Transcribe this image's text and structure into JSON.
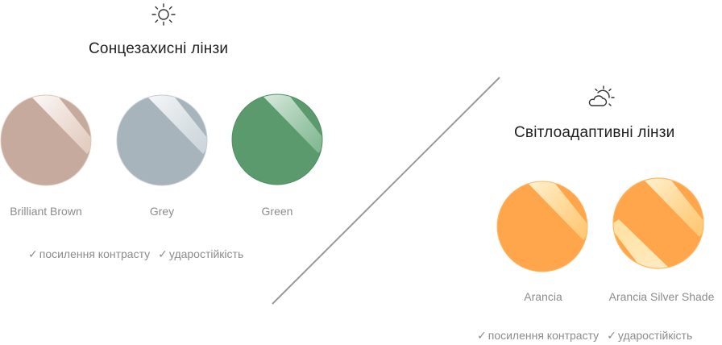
{
  "sunglasses": {
    "icon": "sun-icon",
    "title": "Сонцезахисні лінзи",
    "lenses": [
      {
        "name": "Brilliant Brown",
        "color": "#c5aa9d"
      },
      {
        "name": "Grey",
        "color": "#a8b4bc"
      },
      {
        "name": "Green",
        "color": "#5a9a6c"
      }
    ],
    "features": [
      "посилення контрасту",
      "ударостійкість"
    ]
  },
  "photochromic": {
    "icon": "partly-cloudy-sun-icon",
    "title": "Світлоадаптивні лінзи",
    "lenses": [
      {
        "name": "Arancia",
        "color": "#ffa64d"
      },
      {
        "name": "Arancia Silver Shade",
        "color": "#ffa64d"
      }
    ],
    "features": [
      "посилення контрасту",
      "ударостійкість"
    ]
  },
  "check_mark": "✓"
}
